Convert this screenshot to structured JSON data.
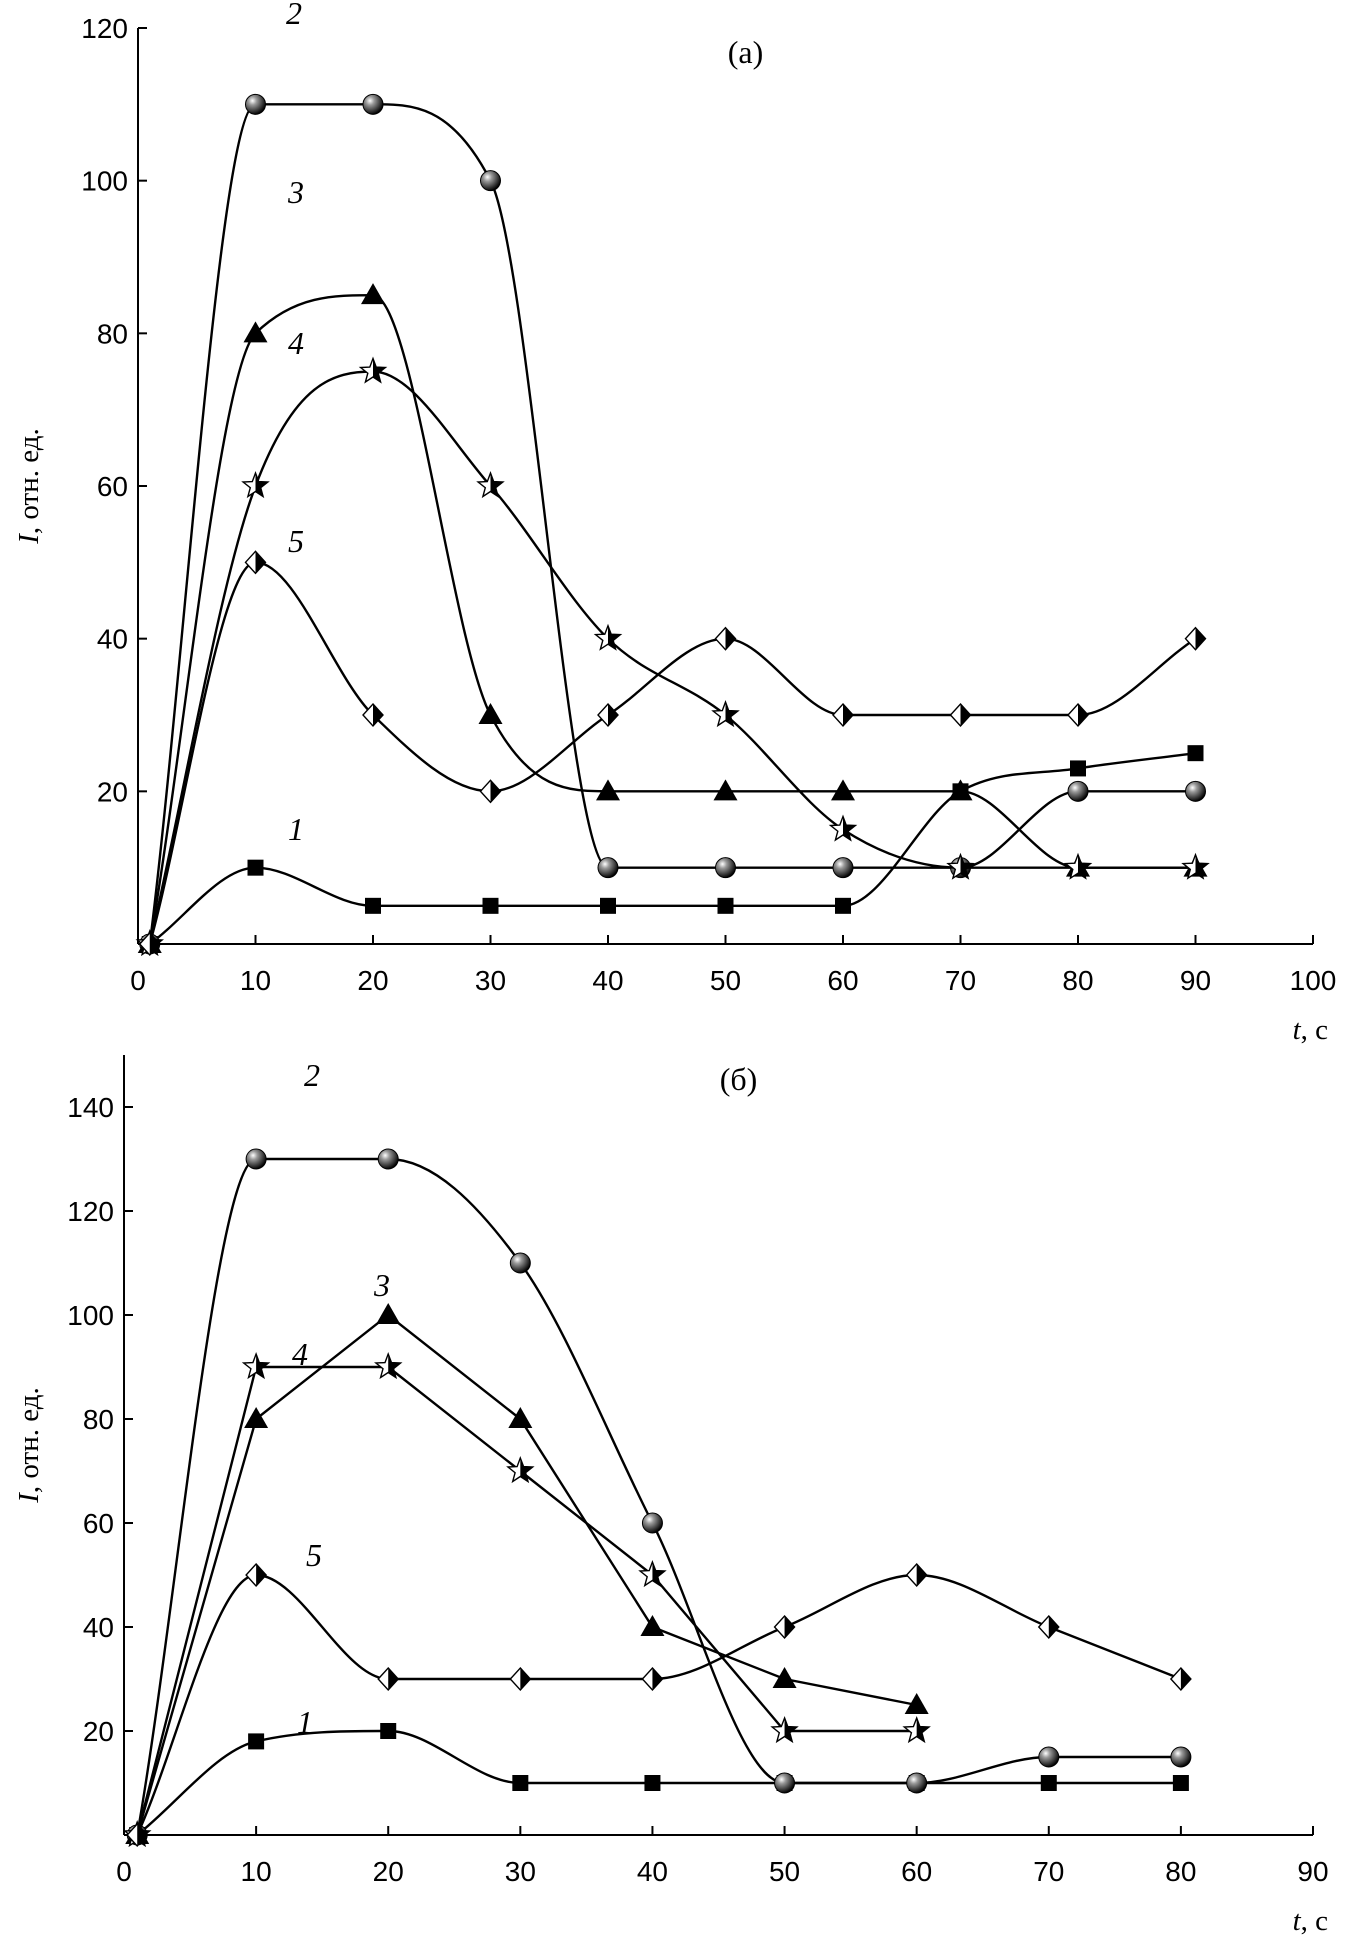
{
  "chart_data": [
    {
      "type": "line",
      "panel_label": "(а)",
      "xlabel": "t, с",
      "xlabel_var": "t",
      "xlabel_unit": ", с",
      "ylabel": "I, отн. ед.",
      "ylabel_var": "I",
      "ylabel_unit": ", отн. ед.",
      "xlim": [
        0,
        100
      ],
      "ylim": [
        0,
        120
      ],
      "xticks": [
        0,
        10,
        20,
        30,
        40,
        50,
        60,
        70,
        80,
        90,
        100
      ],
      "yticks": [
        20,
        40,
        60,
        80,
        100,
        120
      ],
      "grid": false,
      "series": [
        {
          "name": "1",
          "marker": "square",
          "x": [
            1,
            10,
            20,
            30,
            40,
            50,
            60,
            70,
            80,
            90
          ],
          "values": [
            0,
            10,
            5,
            5,
            5,
            5,
            5,
            20,
            23,
            25
          ]
        },
        {
          "name": "2",
          "marker": "sphere",
          "x": [
            1,
            10,
            20,
            30,
            40,
            50,
            60,
            70,
            80,
            90
          ],
          "values": [
            0,
            110,
            110,
            100,
            10,
            10,
            10,
            10,
            20,
            20
          ]
        },
        {
          "name": "3",
          "marker": "triangle",
          "x": [
            1,
            10,
            20,
            30,
            40,
            50,
            60,
            70,
            80,
            90
          ],
          "values": [
            0,
            80,
            85,
            30,
            20,
            20,
            20,
            20,
            10,
            10
          ]
        },
        {
          "name": "4",
          "marker": "star",
          "x": [
            1,
            10,
            20,
            30,
            40,
            50,
            60,
            70,
            80,
            90
          ],
          "values": [
            0,
            60,
            75,
            60,
            40,
            30,
            15,
            10,
            10,
            10
          ]
        },
        {
          "name": "5",
          "marker": "diamond",
          "x": [
            1,
            10,
            20,
            30,
            40,
            50,
            60,
            70,
            80,
            90
          ],
          "values": [
            0,
            50,
            30,
            20,
            30,
            40,
            30,
            30,
            30,
            40
          ]
        }
      ]
    },
    {
      "type": "line",
      "panel_label": "(б)",
      "xlabel": "t, с",
      "xlabel_var": "t",
      "xlabel_unit": ", с",
      "ylabel": "I, отн. ед.",
      "ylabel_var": "I",
      "ylabel_unit": ", отн. ед.",
      "xlim": [
        0,
        90
      ],
      "ylim": [
        0,
        150
      ],
      "xticks": [
        0,
        10,
        20,
        30,
        40,
        50,
        60,
        70,
        80,
        90
      ],
      "yticks": [
        20,
        40,
        60,
        80,
        100,
        120,
        140
      ],
      "grid": false,
      "series": [
        {
          "name": "1",
          "marker": "square",
          "x": [
            1,
            10,
            20,
            30,
            40,
            50,
            60,
            70,
            80
          ],
          "values": [
            0,
            18,
            20,
            10,
            10,
            10,
            10,
            10,
            10
          ]
        },
        {
          "name": "2",
          "marker": "sphere",
          "x": [
            1,
            10,
            20,
            30,
            40,
            50,
            60,
            70,
            80
          ],
          "values": [
            0,
            130,
            130,
            110,
            60,
            10,
            10,
            15,
            15
          ]
        },
        {
          "name": "3",
          "marker": "triangle",
          "x": [
            1,
            10,
            20,
            30,
            40,
            50,
            60
          ],
          "values": [
            0,
            80,
            100,
            80,
            40,
            30,
            25
          ]
        },
        {
          "name": "4",
          "marker": "star",
          "x": [
            1,
            10,
            20,
            30,
            40,
            50,
            60
          ],
          "values": [
            0,
            90,
            90,
            70,
            50,
            20,
            20
          ]
        },
        {
          "name": "5",
          "marker": "diamond",
          "x": [
            1,
            10,
            20,
            30,
            40,
            50,
            60,
            70,
            80
          ],
          "values": [
            0,
            50,
            30,
            30,
            30,
            40,
            50,
            40,
            30
          ]
        }
      ]
    }
  ]
}
